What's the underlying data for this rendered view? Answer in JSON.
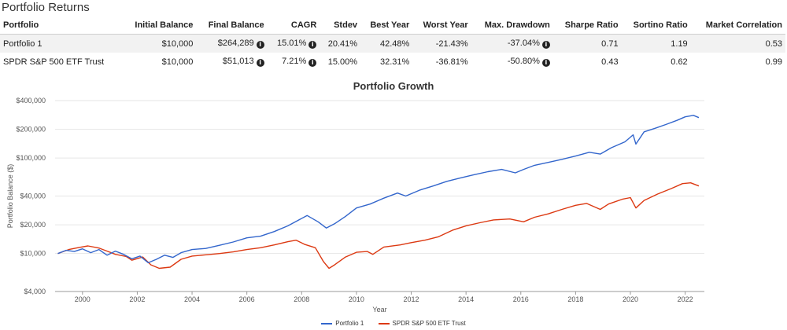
{
  "section_title": "Portfolio Returns",
  "table": {
    "headers": [
      "Portfolio",
      "Initial Balance",
      "Final Balance",
      "CAGR",
      "Stdev",
      "Best Year",
      "Worst Year",
      "Max. Drawdown",
      "Sharpe Ratio",
      "Sortino Ratio",
      "Market Correlation"
    ],
    "rows": [
      {
        "portfolio": "Portfolio 1",
        "initial": "$10,000",
        "final": "$264,289",
        "cagr": "15.01%",
        "stdev": "20.41%",
        "best": "42.48%",
        "worst": "-21.43%",
        "drawdown": "-37.04%",
        "sharpe": "0.71",
        "sortino": "1.19",
        "correlation": "0.53"
      },
      {
        "portfolio": "SPDR S&P 500 ETF Trust",
        "initial": "$10,000",
        "final": "$51,013",
        "cagr": "7.21%",
        "stdev": "15.00%",
        "best": "32.31%",
        "worst": "-36.81%",
        "drawdown": "-50.80%",
        "sharpe": "0.43",
        "sortino": "0.62",
        "correlation": "0.99"
      }
    ],
    "info_icon": "info-circle-icon"
  },
  "chart_data": {
    "type": "line",
    "title": "Portfolio Growth",
    "xlabel": "Year",
    "ylabel": "Portfolio Balance ($)",
    "y_scale": "log",
    "ylim": [
      4000,
      400000
    ],
    "xlim": [
      1999.0,
      2022.7
    ],
    "y_ticks": [
      4000,
      10000,
      20000,
      40000,
      100000,
      200000,
      400000
    ],
    "y_tick_labels": [
      "$4,000",
      "$10,000",
      "$20,000",
      "$40,000",
      "$100,000",
      "$200,000",
      "$400,000"
    ],
    "x_ticks": [
      2000,
      2002,
      2004,
      2006,
      2008,
      2010,
      2012,
      2014,
      2016,
      2018,
      2020,
      2022
    ],
    "x_tick_labels": [
      "2000",
      "2002",
      "2004",
      "2006",
      "2008",
      "2010",
      "2012",
      "2014",
      "2016",
      "2018",
      "2020",
      "2022"
    ],
    "grid": "horizontal",
    "legend_position": "bottom-center",
    "series": [
      {
        "name": "Portfolio 1",
        "color": "#3366cc",
        "x": [
          1999.1,
          1999.4,
          1999.7,
          2000.0,
          2000.3,
          2000.6,
          2000.9,
          2001.2,
          2001.5,
          2001.8,
          2002.1,
          2002.4,
          2002.7,
          2003.0,
          2003.3,
          2003.6,
          2004.0,
          2004.5,
          2005.0,
          2005.5,
          2006.0,
          2006.5,
          2007.0,
          2007.5,
          2007.9,
          2008.2,
          2008.6,
          2008.9,
          2009.2,
          2009.6,
          2010.0,
          2010.5,
          2011.0,
          2011.5,
          2011.8,
          2012.3,
          2012.8,
          2013.3,
          2013.8,
          2014.3,
          2014.8,
          2015.3,
          2015.8,
          2016.1,
          2016.5,
          2017.0,
          2017.5,
          2018.0,
          2018.5,
          2018.9,
          2019.3,
          2019.8,
          2020.1,
          2020.2,
          2020.5,
          2020.9,
          2021.3,
          2021.7,
          2022.0,
          2022.3,
          2022.5
        ],
        "values": [
          10000,
          10800,
          10500,
          11200,
          10200,
          11000,
          9600,
          10600,
          9800,
          8800,
          9400,
          8000,
          8700,
          9600,
          9100,
          10200,
          11000,
          11300,
          12200,
          13200,
          14600,
          15200,
          17000,
          19500,
          22500,
          25000,
          21500,
          18500,
          20500,
          24500,
          30000,
          33000,
          38000,
          43000,
          40000,
          46000,
          51000,
          57000,
          62000,
          67000,
          72000,
          76000,
          70000,
          76000,
          84000,
          90000,
          97000,
          105000,
          115000,
          110000,
          128000,
          148000,
          175000,
          140000,
          188000,
          205000,
          225000,
          248000,
          270000,
          280000,
          265000
        ]
      },
      {
        "name": "SPDR S&P 500 ETF Trust",
        "color": "#dc3912",
        "x": [
          1999.1,
          1999.5,
          1999.9,
          2000.2,
          2000.6,
          2000.9,
          2001.2,
          2001.6,
          2001.8,
          2002.2,
          2002.5,
          2002.8,
          2003.2,
          2003.6,
          2004.0,
          2004.5,
          2005.0,
          2005.5,
          2006.0,
          2006.5,
          2007.0,
          2007.5,
          2007.8,
          2008.1,
          2008.5,
          2008.8,
          2009.0,
          2009.2,
          2009.6,
          2010.0,
          2010.4,
          2010.6,
          2011.0,
          2011.6,
          2012.0,
          2012.5,
          2013.0,
          2013.5,
          2014.0,
          2014.5,
          2015.0,
          2015.6,
          2016.1,
          2016.5,
          2017.0,
          2017.5,
          2018.0,
          2018.4,
          2018.9,
          2019.2,
          2019.7,
          2020.0,
          2020.2,
          2020.5,
          2021.0,
          2021.5,
          2021.9,
          2022.2,
          2022.5
        ],
        "values": [
          10000,
          11000,
          11600,
          12000,
          11400,
          10600,
          9800,
          9300,
          8500,
          9200,
          7600,
          7000,
          7200,
          8700,
          9400,
          9700,
          10000,
          10400,
          11000,
          11500,
          12300,
          13300,
          13800,
          12500,
          11500,
          8200,
          7000,
          7600,
          9200,
          10300,
          10500,
          9800,
          11700,
          12300,
          13000,
          13800,
          15000,
          17500,
          19500,
          21000,
          22500,
          23000,
          21500,
          24000,
          26000,
          29000,
          32000,
          33500,
          29000,
          33000,
          37000,
          38500,
          30000,
          36000,
          42000,
          48000,
          54000,
          55000,
          51000
        ]
      }
    ]
  },
  "legend_icons": [
    "line-swatch-icon",
    "line-swatch-icon"
  ]
}
